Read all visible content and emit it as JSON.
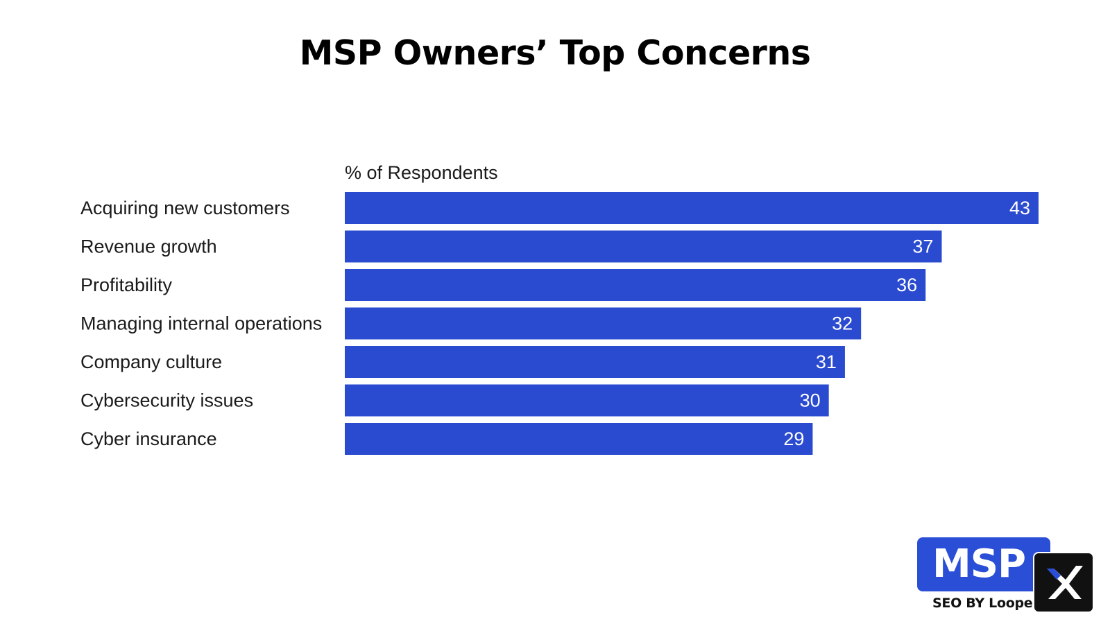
{
  "chart_data": {
    "type": "bar",
    "orientation": "horizontal",
    "title": "MSP Owners’ Top Concerns",
    "value_axis_label": "% of Respondents",
    "categories": [
      "Acquiring new customers",
      "Revenue growth",
      "Profitability",
      "Managing internal operations",
      "Company culture",
      "Cybersecurity issues",
      "Cyber insurance"
    ],
    "values": [
      43,
      37,
      36,
      32,
      31,
      30,
      29
    ],
    "xlim": [
      0,
      43
    ],
    "grid": false,
    "bar_color": "#2a4bcf",
    "data_labels": true
  },
  "logo": {
    "text": "MSP",
    "tagline": "SEO BY Loopex",
    "brand_color": "#2a4fd6",
    "icon": "x-icon"
  }
}
